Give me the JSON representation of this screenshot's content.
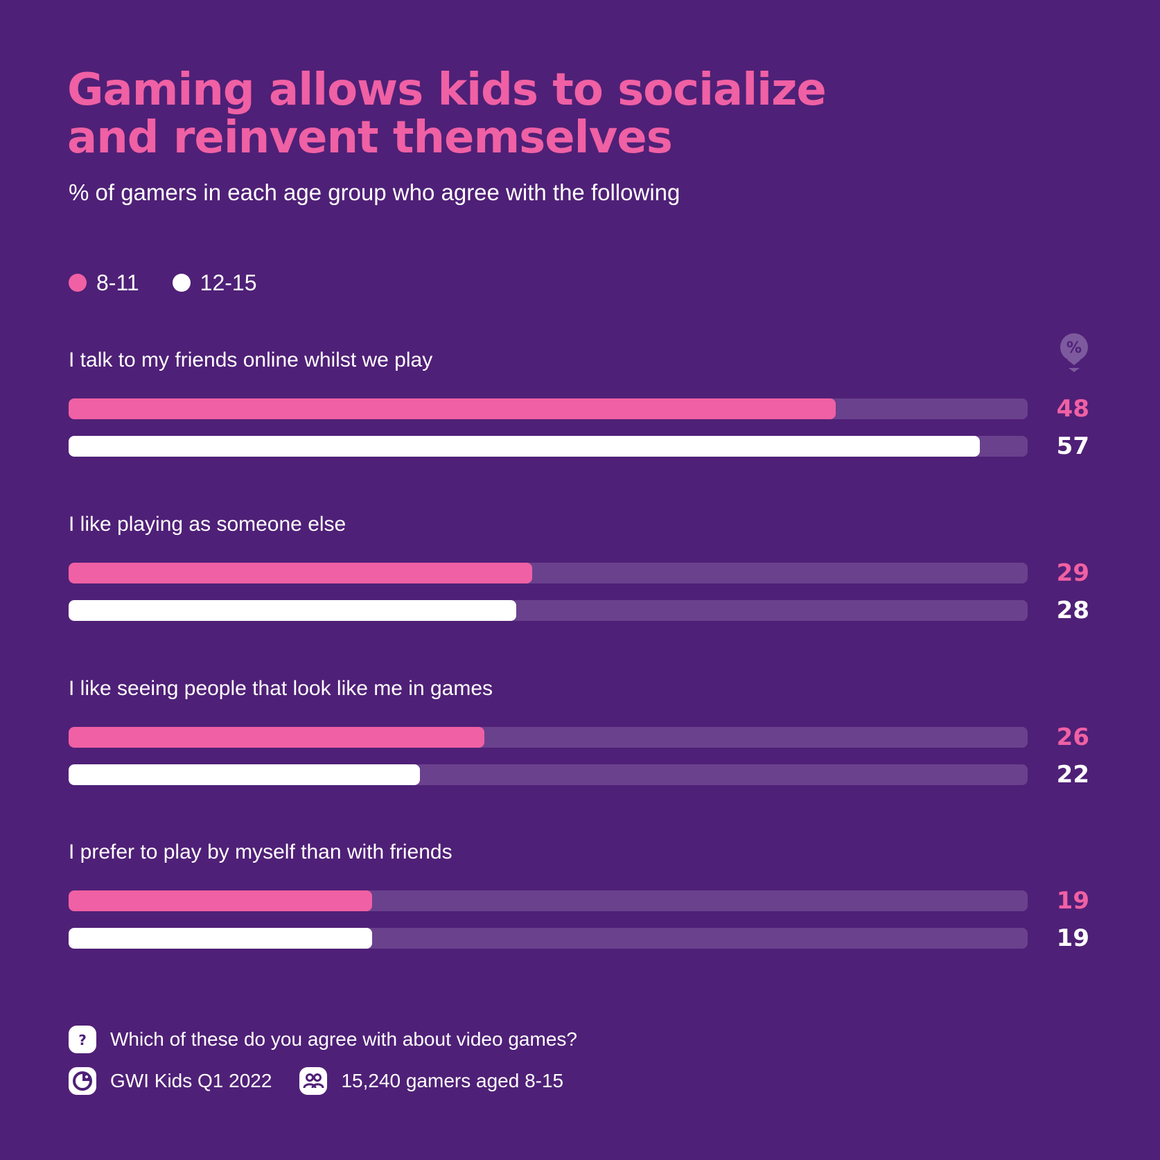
{
  "colors": {
    "background": "#4f2077",
    "track": "#6a418d",
    "series_8_11": "#f060a4",
    "series_12_15": "#ffffff"
  },
  "chart_data": {
    "type": "bar",
    "orientation": "horizontal",
    "title": "Gaming allows kids to socialize and reinvent themselves",
    "title_lines": [
      "Gaming allows kids to socialize",
      "and reinvent themselves"
    ],
    "subtitle": "% of gamers in each age group who agree with the following",
    "unit_badge": "%",
    "xlim": [
      0,
      60
    ],
    "grid": false,
    "legend_position": "top-left",
    "categories": [
      "I talk to my friends online whilst we play",
      "I like playing as someone else",
      "I like seeing people that look like me in games",
      "I prefer to play by myself than with friends"
    ],
    "series": [
      {
        "name": "8-11",
        "color": "#f060a4",
        "values": [
          48,
          29,
          26,
          19
        ]
      },
      {
        "name": "12-15",
        "color": "#ffffff",
        "values": [
          57,
          28,
          22,
          19
        ]
      }
    ]
  },
  "footer": {
    "question_icon": "question-icon",
    "question": "Which of these do you agree with about video games?",
    "source_icon": "gwi-logo-icon",
    "source": "GWI Kids Q1 2022",
    "audience_icon": "people-icon",
    "audience": "15,240 gamers aged 8-15"
  }
}
